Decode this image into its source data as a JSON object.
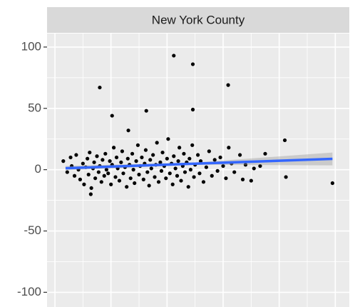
{
  "chart_data": {
    "type": "scatter",
    "title": "New York County",
    "color": "#000000",
    "xlim": [
      -0.14,
      5.25
    ],
    "xticks": [
      0,
      1,
      2,
      3,
      4,
      5
    ],
    "ylim": [
      -112,
      111
    ],
    "yticks": [
      -100,
      -50,
      0,
      50,
      100
    ],
    "grid": true,
    "x": [
      0.8,
      1.02,
      1.63,
      2.12,
      2.46,
      2.46,
      3.09,
      1.31,
      4.1,
      4.12,
      4.95,
      0.64,
      3.66,
      3.75,
      0.15,
      0.22,
      0.28,
      0.3,
      0.35,
      0.38,
      0.42,
      0.45,
      0.5,
      0.52,
      0.55,
      0.58,
      0.6,
      0.62,
      0.65,
      0.68,
      0.7,
      0.72,
      0.75,
      0.78,
      0.8,
      0.83,
      0.85,
      0.88,
      0.9,
      0.92,
      0.95,
      0.98,
      1.0,
      1.02,
      1.05,
      1.08,
      1.1,
      1.12,
      1.15,
      1.18,
      1.2,
      1.22,
      1.25,
      1.28,
      1.3,
      1.33,
      1.35,
      1.38,
      1.4,
      1.42,
      1.45,
      1.48,
      1.5,
      1.52,
      1.55,
      1.58,
      1.6,
      1.62,
      1.65,
      1.68,
      1.7,
      1.72,
      1.75,
      1.78,
      1.8,
      1.82,
      1.85,
      1.88,
      1.9,
      1.92,
      1.95,
      1.98,
      2.0,
      2.02,
      2.05,
      2.08,
      2.1,
      2.12,
      2.15,
      2.18,
      2.2,
      2.22,
      2.25,
      2.28,
      2.3,
      2.32,
      2.35,
      2.38,
      2.4,
      2.42,
      2.45,
      2.48,
      2.5,
      2.55,
      2.58,
      2.6,
      2.65,
      2.7,
      2.75,
      2.8,
      2.85,
      2.9,
      2.95,
      3.0,
      3.05,
      3.1,
      3.15,
      3.2,
      3.3,
      3.35,
      3.4,
      3.5,
      3.55
    ],
    "y": [
      67,
      44,
      48,
      93,
      86,
      49,
      69,
      32,
      24,
      -6,
      -11,
      -20,
      3,
      13,
      7,
      -2,
      10,
      3,
      -5,
      12,
      0,
      -8,
      5,
      -12,
      2,
      9,
      -4,
      14,
      -15,
      1,
      6,
      -7,
      11,
      -2,
      3,
      -10,
      8,
      -5,
      13,
      0,
      -3,
      7,
      -12,
      4,
      18,
      -6,
      10,
      1,
      -9,
      6,
      15,
      -3,
      2,
      -14,
      9,
      4,
      -7,
      13,
      0,
      -11,
      7,
      20,
      -4,
      3,
      10,
      -8,
      5,
      16,
      -2,
      -13,
      8,
      1,
      12,
      -6,
      4,
      22,
      -10,
      6,
      -1,
      14,
      3,
      -7,
      9,
      25,
      -3,
      5,
      -12,
      11,
      1,
      -5,
      7,
      18,
      -9,
      3,
      13,
      -2,
      6,
      -14,
      9,
      0,
      20,
      -6,
      4,
      12,
      -3,
      7,
      -10,
      2,
      15,
      -5,
      8,
      -1,
      10,
      3,
      -7,
      18,
      5,
      -2,
      12,
      -8,
      4,
      -9,
      1
    ],
    "smooth": {
      "color": "#3366ff",
      "x": [
        0.19,
        2.5,
        4.95
      ],
      "y": [
        1.2,
        4.9,
        8.8
      ],
      "lower": [
        -0.5,
        4,
        3.5
      ],
      "upper": [
        3,
        5.8,
        14
      ]
    }
  }
}
